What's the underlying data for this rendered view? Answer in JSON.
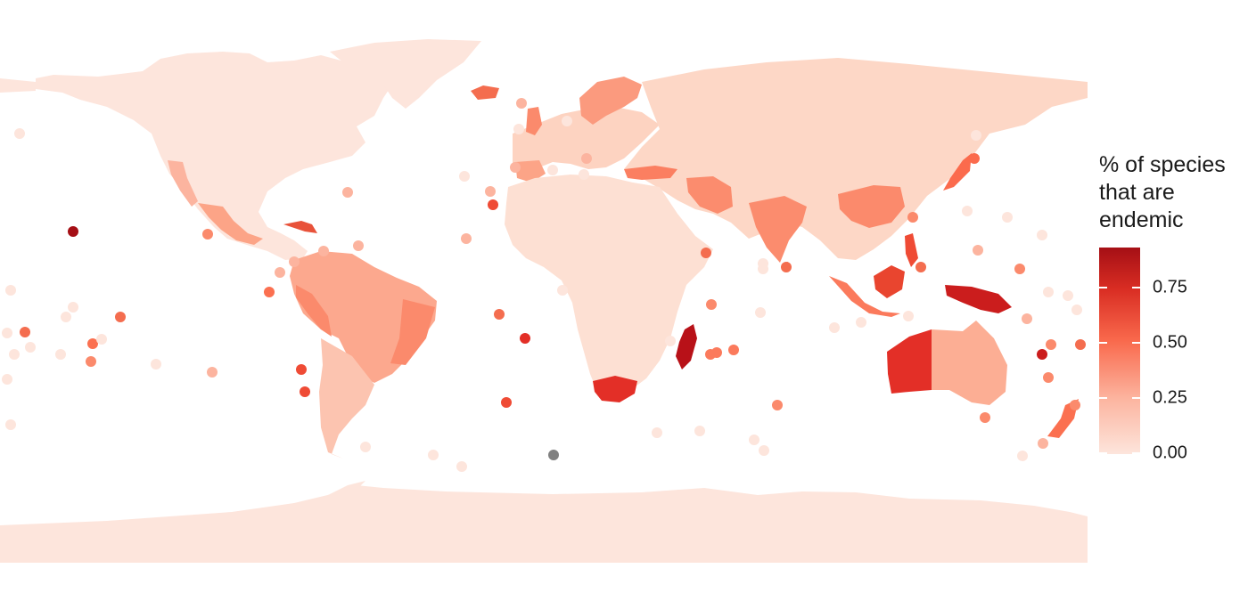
{
  "legend": {
    "title": "% of species\nthat are\nendemic",
    "ticks": [
      "0.75",
      "0.50",
      "0.25",
      "0.00"
    ],
    "tick_values": [
      0.75,
      0.5,
      0.25,
      0.0
    ],
    "scale_max": 0.93
  },
  "colors": {
    "low": "#fde5dc",
    "mid": "#fb8a6c",
    "high": "#a50f15",
    "missing": "#808080"
  }
}
